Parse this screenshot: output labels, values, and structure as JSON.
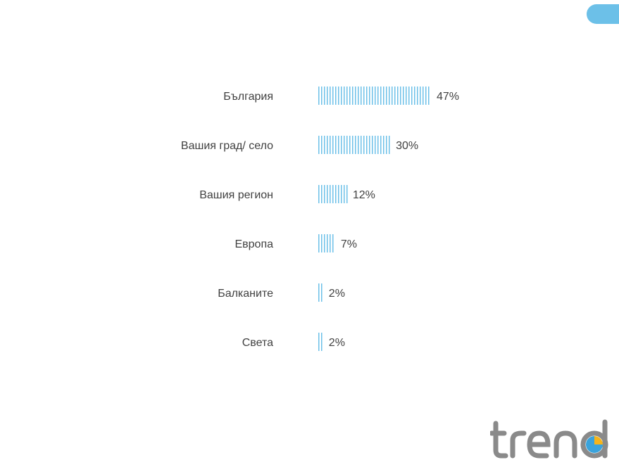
{
  "colors": {
    "bar": "#6cc0e8",
    "text": "#404040",
    "logo_gray": "#8a8a8a",
    "logo_blue": "#3aa3dc",
    "logo_yellow": "#f5b41a"
  },
  "logo": {
    "text": "trend"
  },
  "chart_data": {
    "type": "bar",
    "orientation": "horizontal",
    "title": "",
    "xlabel": "",
    "ylabel": "",
    "categories": [
      "България",
      "Вашия град/ село",
      "Вашия регион",
      "Европа",
      "Балканите",
      "Света"
    ],
    "values": [
      47,
      30,
      12,
      7,
      2,
      2
    ],
    "value_labels": [
      "47%",
      "30%",
      "12%",
      "7%",
      "2%",
      "2%"
    ],
    "unit": "%",
    "xlim": [
      0,
      47
    ],
    "grid": false,
    "legend": "none",
    "bar_style": "vertical-stripes"
  }
}
